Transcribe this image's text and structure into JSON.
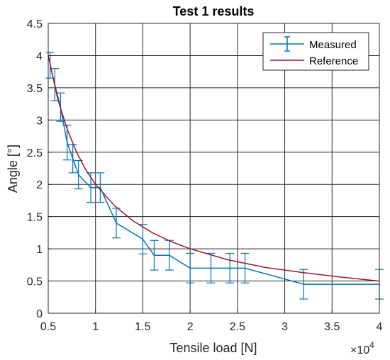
{
  "chart_data": {
    "type": "line",
    "title": "Test 1 results",
    "xlabel": "Tensile load [N]",
    "ylabel": "Angle [°]",
    "x_exponent_label": "×10",
    "x_exponent_power": "4",
    "xlim": [
      0.5,
      4
    ],
    "ylim": [
      0,
      4.5
    ],
    "x_ticks": [
      0.5,
      1,
      1.5,
      2,
      2.5,
      3,
      3.5,
      4
    ],
    "x_tick_labels": [
      "0.5",
      "1",
      "1.5",
      "2",
      "2.5",
      "3",
      "3.5",
      "4"
    ],
    "y_ticks": [
      0,
      0.5,
      1,
      1.5,
      2,
      2.5,
      3,
      3.5,
      4,
      4.5
    ],
    "y_tick_labels": [
      "0",
      "0.5",
      "1",
      "1.5",
      "2",
      "2.5",
      "3",
      "3.5",
      "4",
      "4.5"
    ],
    "grid": true,
    "legend": {
      "placement": "top-right",
      "entries": [
        "Measured",
        "Reference"
      ]
    },
    "series": [
      {
        "name": "Measured",
        "color": "#0072BD",
        "error_bars": true,
        "x": [
          0.52,
          0.57,
          0.63,
          0.7,
          0.76,
          0.82,
          0.95,
          1.05,
          1.22,
          1.5,
          1.62,
          1.78,
          2.0,
          2.22,
          2.42,
          2.58,
          3.2,
          4.0
        ],
        "y": [
          3.85,
          3.55,
          3.2,
          2.65,
          2.4,
          2.15,
          1.95,
          1.95,
          1.4,
          1.15,
          0.9,
          0.9,
          0.7,
          0.7,
          0.7,
          0.7,
          0.45,
          0.45
        ],
        "yerr": [
          0.2,
          0.25,
          0.22,
          0.27,
          0.22,
          0.22,
          0.23,
          0.23,
          0.23,
          0.23,
          0.23,
          0.23,
          0.23,
          0.23,
          0.23,
          0.23,
          0.23,
          0.23
        ]
      },
      {
        "name": "Reference",
        "color": "#A2142F",
        "error_bars": false,
        "x": [
          0.5,
          0.6,
          0.7,
          0.8,
          0.9,
          1.0,
          1.2,
          1.4,
          1.6,
          1.8,
          2.0,
          2.4,
          2.8,
          3.2,
          3.6,
          4.0
        ],
        "y": [
          4.0,
          3.33,
          2.86,
          2.5,
          2.22,
          2.0,
          1.67,
          1.43,
          1.25,
          1.11,
          1.0,
          0.83,
          0.71,
          0.63,
          0.56,
          0.5
        ]
      }
    ]
  }
}
